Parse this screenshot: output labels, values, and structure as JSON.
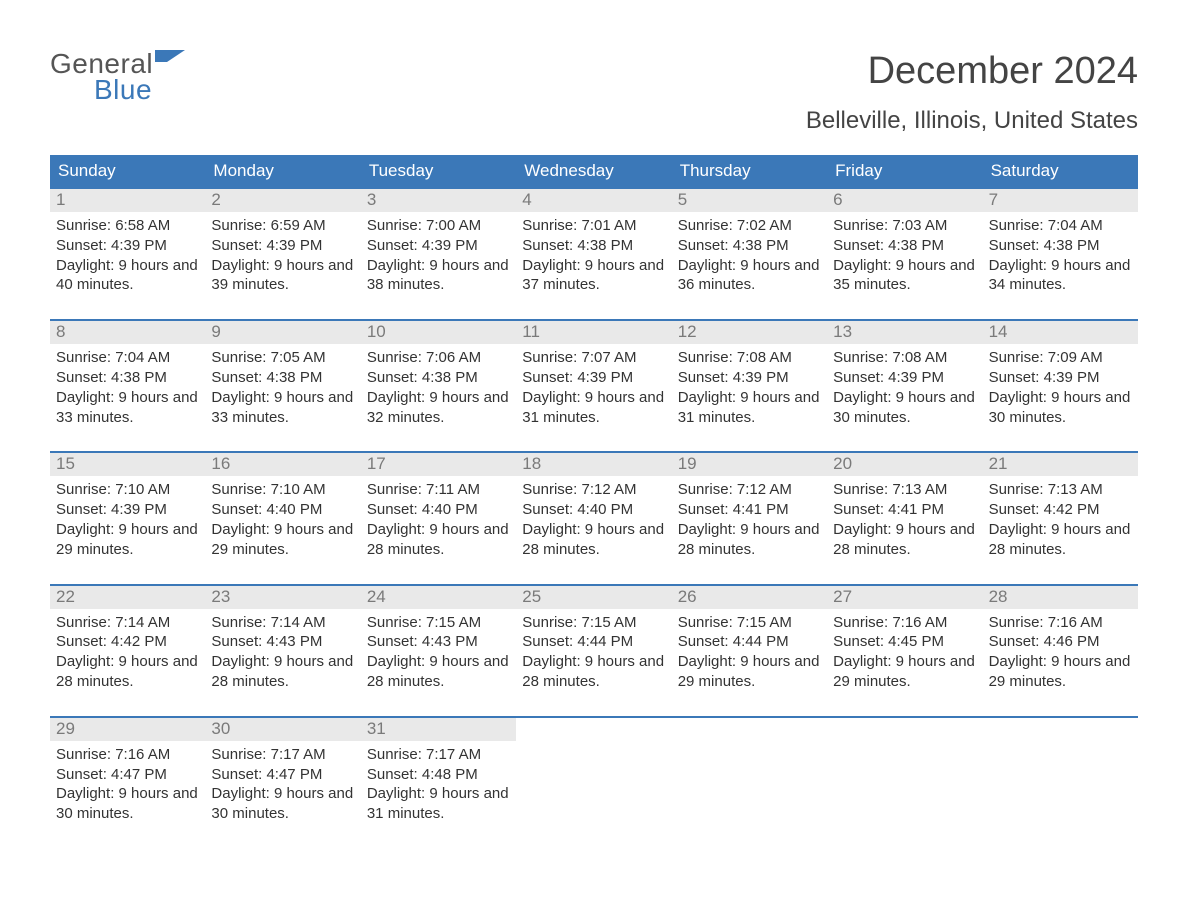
{
  "logo": {
    "line1": "General",
    "line2": "Blue"
  },
  "title": "December 2024",
  "location": "Belleville, Illinois, United States",
  "colors": {
    "blue": "#3b78b8",
    "daynum_bg": "#e9e9e9",
    "daynum_color": "#7a7a7a",
    "text": "#333333",
    "title_gray": "#444444",
    "background": "#ffffff"
  },
  "days_of_week": [
    "Sunday",
    "Monday",
    "Tuesday",
    "Wednesday",
    "Thursday",
    "Friday",
    "Saturday"
  ],
  "weeks": [
    [
      {
        "n": 1,
        "sr": "6:58 AM",
        "ss": "4:39 PM",
        "dl": "9 hours and 40 minutes."
      },
      {
        "n": 2,
        "sr": "6:59 AM",
        "ss": "4:39 PM",
        "dl": "9 hours and 39 minutes."
      },
      {
        "n": 3,
        "sr": "7:00 AM",
        "ss": "4:39 PM",
        "dl": "9 hours and 38 minutes."
      },
      {
        "n": 4,
        "sr": "7:01 AM",
        "ss": "4:38 PM",
        "dl": "9 hours and 37 minutes."
      },
      {
        "n": 5,
        "sr": "7:02 AM",
        "ss": "4:38 PM",
        "dl": "9 hours and 36 minutes."
      },
      {
        "n": 6,
        "sr": "7:03 AM",
        "ss": "4:38 PM",
        "dl": "9 hours and 35 minutes."
      },
      {
        "n": 7,
        "sr": "7:04 AM",
        "ss": "4:38 PM",
        "dl": "9 hours and 34 minutes."
      }
    ],
    [
      {
        "n": 8,
        "sr": "7:04 AM",
        "ss": "4:38 PM",
        "dl": "9 hours and 33 minutes."
      },
      {
        "n": 9,
        "sr": "7:05 AM",
        "ss": "4:38 PM",
        "dl": "9 hours and 33 minutes."
      },
      {
        "n": 10,
        "sr": "7:06 AM",
        "ss": "4:38 PM",
        "dl": "9 hours and 32 minutes."
      },
      {
        "n": 11,
        "sr": "7:07 AM",
        "ss": "4:39 PM",
        "dl": "9 hours and 31 minutes."
      },
      {
        "n": 12,
        "sr": "7:08 AM",
        "ss": "4:39 PM",
        "dl": "9 hours and 31 minutes."
      },
      {
        "n": 13,
        "sr": "7:08 AM",
        "ss": "4:39 PM",
        "dl": "9 hours and 30 minutes."
      },
      {
        "n": 14,
        "sr": "7:09 AM",
        "ss": "4:39 PM",
        "dl": "9 hours and 30 minutes."
      }
    ],
    [
      {
        "n": 15,
        "sr": "7:10 AM",
        "ss": "4:39 PM",
        "dl": "9 hours and 29 minutes."
      },
      {
        "n": 16,
        "sr": "7:10 AM",
        "ss": "4:40 PM",
        "dl": "9 hours and 29 minutes."
      },
      {
        "n": 17,
        "sr": "7:11 AM",
        "ss": "4:40 PM",
        "dl": "9 hours and 28 minutes."
      },
      {
        "n": 18,
        "sr": "7:12 AM",
        "ss": "4:40 PM",
        "dl": "9 hours and 28 minutes."
      },
      {
        "n": 19,
        "sr": "7:12 AM",
        "ss": "4:41 PM",
        "dl": "9 hours and 28 minutes."
      },
      {
        "n": 20,
        "sr": "7:13 AM",
        "ss": "4:41 PM",
        "dl": "9 hours and 28 minutes."
      },
      {
        "n": 21,
        "sr": "7:13 AM",
        "ss": "4:42 PM",
        "dl": "9 hours and 28 minutes."
      }
    ],
    [
      {
        "n": 22,
        "sr": "7:14 AM",
        "ss": "4:42 PM",
        "dl": "9 hours and 28 minutes."
      },
      {
        "n": 23,
        "sr": "7:14 AM",
        "ss": "4:43 PM",
        "dl": "9 hours and 28 minutes."
      },
      {
        "n": 24,
        "sr": "7:15 AM",
        "ss": "4:43 PM",
        "dl": "9 hours and 28 minutes."
      },
      {
        "n": 25,
        "sr": "7:15 AM",
        "ss": "4:44 PM",
        "dl": "9 hours and 28 minutes."
      },
      {
        "n": 26,
        "sr": "7:15 AM",
        "ss": "4:44 PM",
        "dl": "9 hours and 29 minutes."
      },
      {
        "n": 27,
        "sr": "7:16 AM",
        "ss": "4:45 PM",
        "dl": "9 hours and 29 minutes."
      },
      {
        "n": 28,
        "sr": "7:16 AM",
        "ss": "4:46 PM",
        "dl": "9 hours and 29 minutes."
      }
    ],
    [
      {
        "n": 29,
        "sr": "7:16 AM",
        "ss": "4:47 PM",
        "dl": "9 hours and 30 minutes."
      },
      {
        "n": 30,
        "sr": "7:17 AM",
        "ss": "4:47 PM",
        "dl": "9 hours and 30 minutes."
      },
      {
        "n": 31,
        "sr": "7:17 AM",
        "ss": "4:48 PM",
        "dl": "9 hours and 31 minutes."
      },
      null,
      null,
      null,
      null
    ]
  ],
  "labels": {
    "sunrise": "Sunrise:",
    "sunset": "Sunset:",
    "daylight": "Daylight:"
  }
}
